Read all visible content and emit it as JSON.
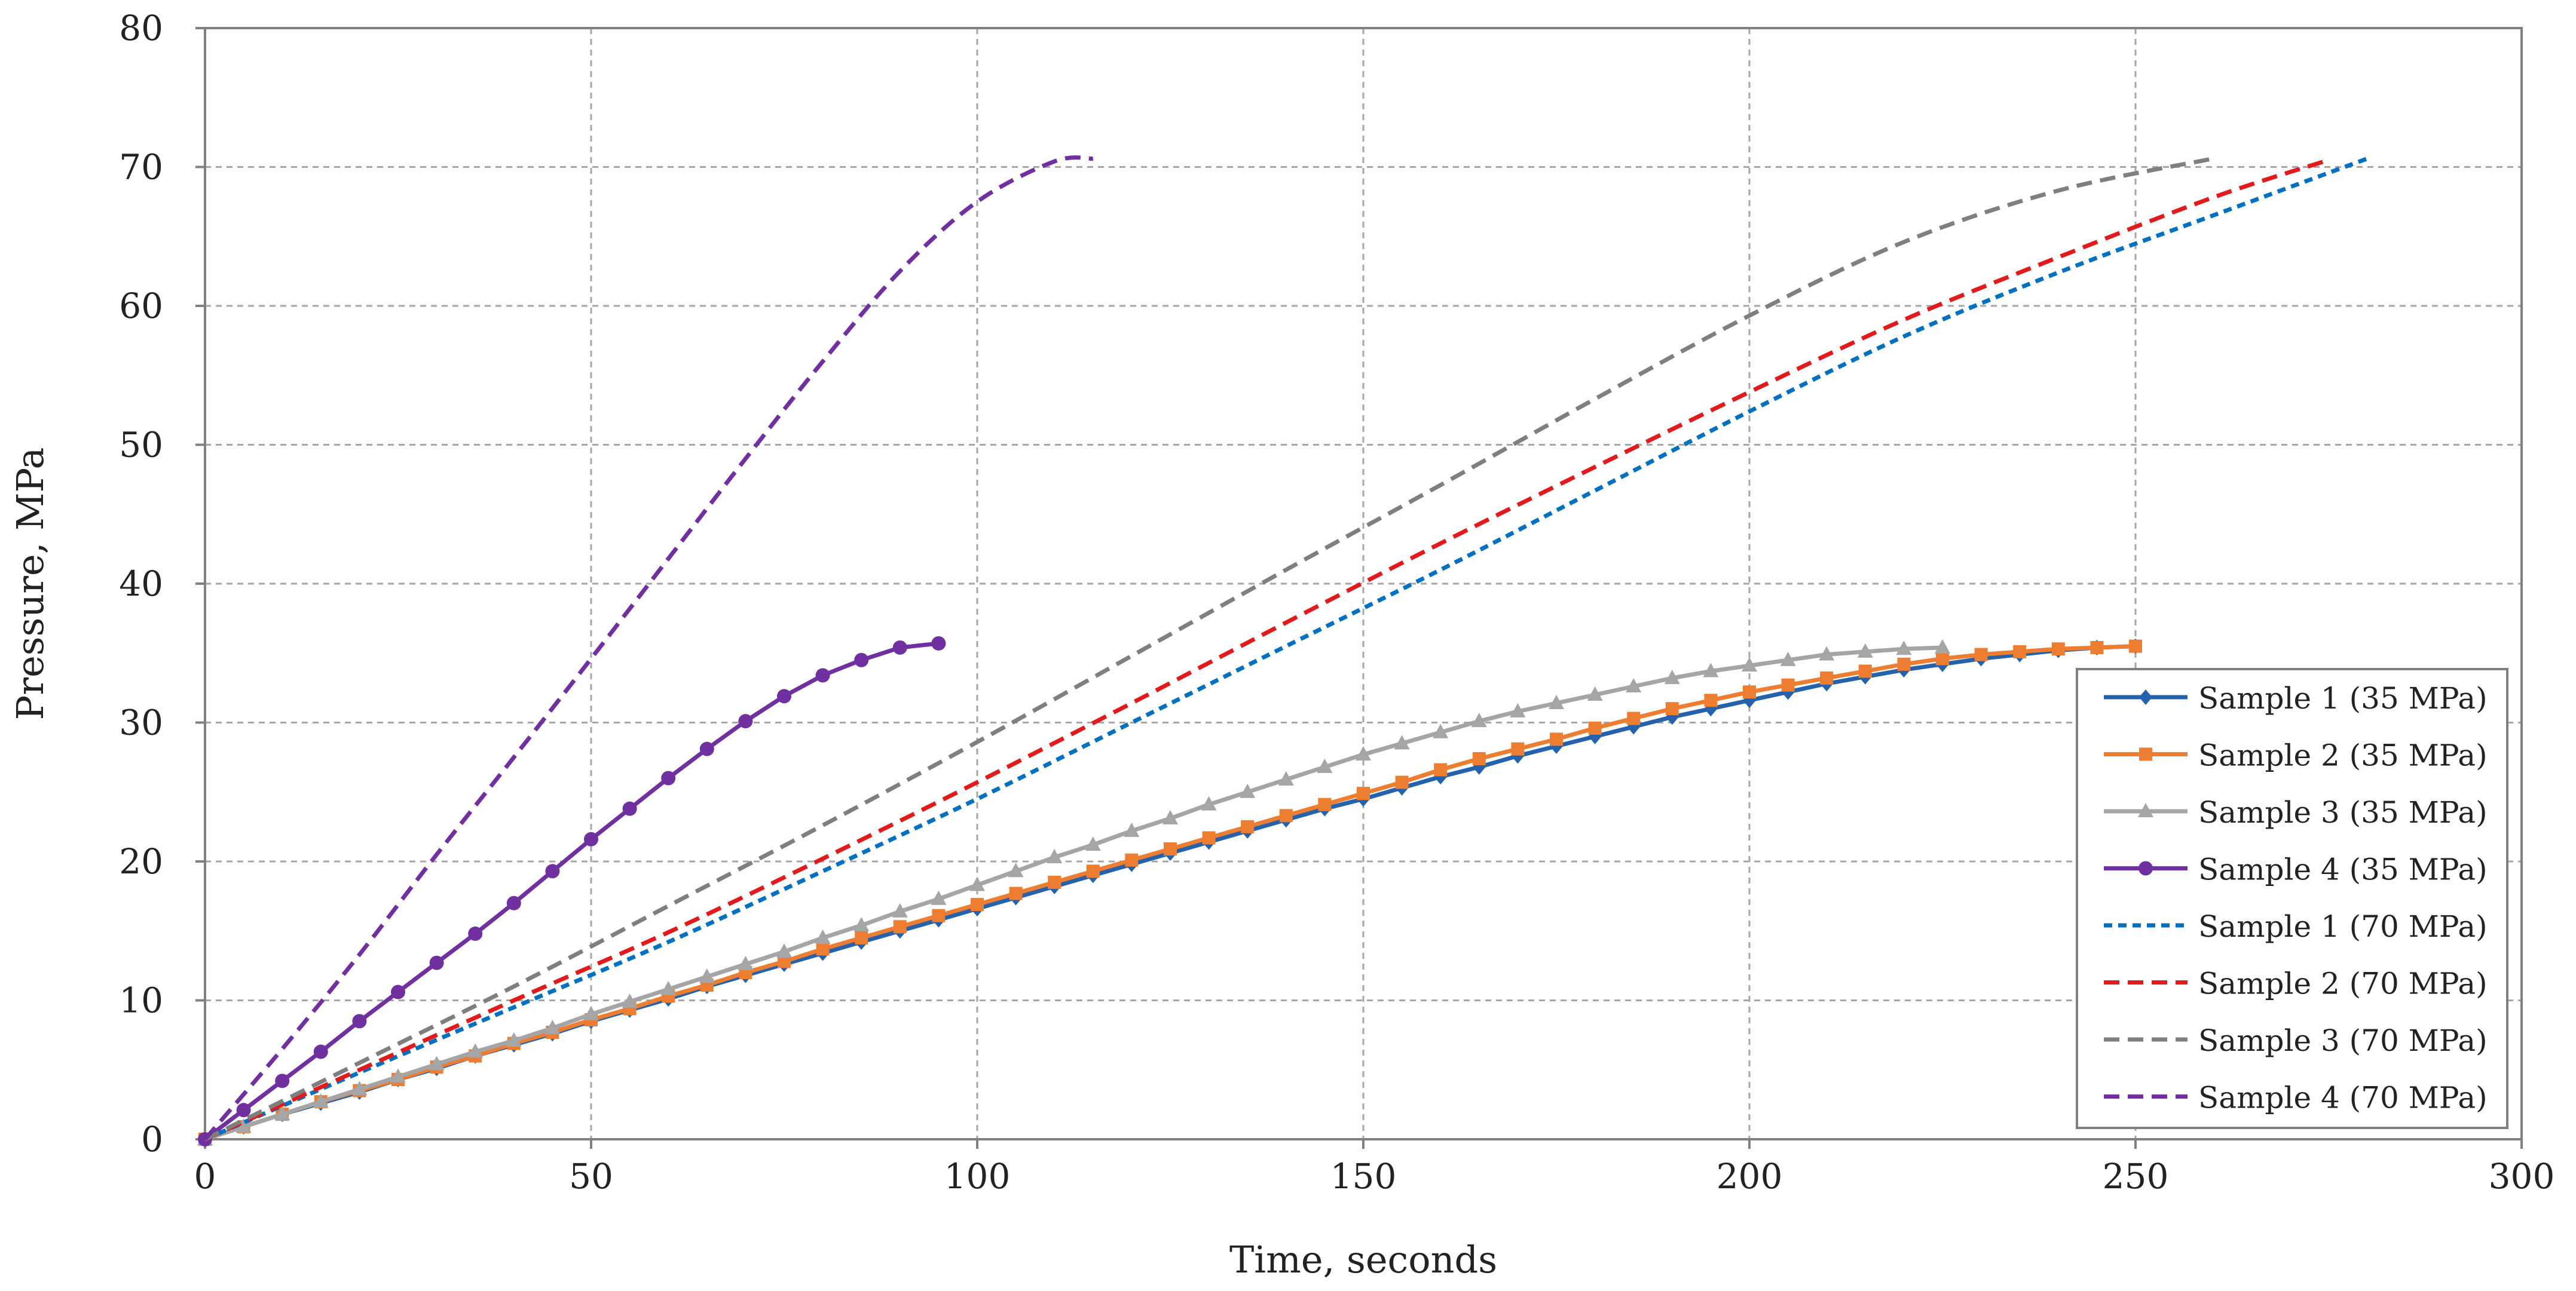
{
  "chart_data": {
    "type": "line",
    "title": "",
    "xlabel": "Time, seconds",
    "ylabel": "Pressure, MPa",
    "xlim": [
      0,
      300
    ],
    "ylim": [
      0,
      80
    ],
    "xticks": [
      0,
      50,
      100,
      150,
      200,
      250,
      300
    ],
    "yticks": [
      0,
      10,
      20,
      30,
      40,
      50,
      60,
      70,
      80
    ],
    "grid": true,
    "legend_position": "right",
    "series": [
      {
        "name": "Sample 1 (35 MPa)",
        "color": "#2462AE",
        "style": "solid",
        "marker": "diamond",
        "x": [
          0,
          5,
          10,
          15,
          20,
          25,
          30,
          35,
          40,
          45,
          50,
          55,
          60,
          65,
          70,
          75,
          80,
          85,
          90,
          95,
          100,
          105,
          110,
          115,
          120,
          125,
          130,
          135,
          140,
          145,
          150,
          155,
          160,
          165,
          170,
          175,
          180,
          185,
          190,
          195,
          200,
          205,
          210,
          215,
          220,
          225,
          230,
          235,
          240,
          245,
          250
        ],
        "y": [
          0,
          0.9,
          1.8,
          2.6,
          3.4,
          4.3,
          5.1,
          6.0,
          6.8,
          7.6,
          8.5,
          9.3,
          10.1,
          11.0,
          11.8,
          12.6,
          13.4,
          14.2,
          15.0,
          15.8,
          16.6,
          17.4,
          18.2,
          19.0,
          19.8,
          20.6,
          21.4,
          22.2,
          23.0,
          23.8,
          24.5,
          25.3,
          26.1,
          26.8,
          27.6,
          28.3,
          29.0,
          29.7,
          30.4,
          31.0,
          31.6,
          32.2,
          32.8,
          33.3,
          33.8,
          34.2,
          34.6,
          34.9,
          35.2,
          35.4,
          35.5
        ]
      },
      {
        "name": "Sample 2 (35 MPa)",
        "color": "#ED7D31",
        "style": "solid",
        "marker": "square",
        "x": [
          0,
          5,
          10,
          15,
          20,
          25,
          30,
          35,
          40,
          45,
          50,
          55,
          60,
          65,
          70,
          75,
          80,
          85,
          90,
          95,
          100,
          105,
          110,
          115,
          120,
          125,
          130,
          135,
          140,
          145,
          150,
          155,
          160,
          165,
          170,
          175,
          180,
          185,
          190,
          195,
          200,
          205,
          210,
          215,
          220,
          225,
          230,
          235,
          240,
          245,
          250
        ],
        "y": [
          0,
          0.9,
          1.8,
          2.7,
          3.5,
          4.3,
          5.2,
          6.0,
          6.9,
          7.7,
          8.6,
          9.4,
          10.3,
          11.1,
          12.0,
          12.8,
          13.7,
          14.5,
          15.3,
          16.1,
          16.9,
          17.7,
          18.5,
          19.3,
          20.1,
          20.9,
          21.7,
          22.5,
          23.3,
          24.1,
          24.9,
          25.7,
          26.6,
          27.4,
          28.1,
          28.8,
          29.6,
          30.3,
          31.0,
          31.6,
          32.2,
          32.7,
          33.2,
          33.7,
          34.2,
          34.6,
          34.9,
          35.1,
          35.3,
          35.4,
          35.5
        ]
      },
      {
        "name": "Sample 3 (35 MPa)",
        "color": "#A5A5A5",
        "style": "solid",
        "marker": "triangle",
        "x": [
          0,
          5,
          10,
          15,
          20,
          25,
          30,
          35,
          40,
          45,
          50,
          55,
          60,
          65,
          70,
          75,
          80,
          85,
          90,
          95,
          100,
          105,
          110,
          115,
          120,
          125,
          130,
          135,
          140,
          145,
          150,
          155,
          160,
          165,
          170,
          175,
          180,
          185,
          190,
          195,
          200,
          205,
          210,
          215,
          220,
          225
        ],
        "y": [
          0,
          0.9,
          1.8,
          2.7,
          3.6,
          4.5,
          5.4,
          6.3,
          7.1,
          8.0,
          9.0,
          9.9,
          10.8,
          11.7,
          12.6,
          13.5,
          14.5,
          15.4,
          16.4,
          17.3,
          18.3,
          19.3,
          20.3,
          21.2,
          22.2,
          23.1,
          24.1,
          25.0,
          25.9,
          26.8,
          27.7,
          28.5,
          29.3,
          30.1,
          30.8,
          31.4,
          32.0,
          32.6,
          33.2,
          33.7,
          34.1,
          34.5,
          34.9,
          35.1,
          35.3,
          35.4
        ]
      },
      {
        "name": "Sample 4 (35 MPa)",
        "color": "#7030A0",
        "style": "solid",
        "marker": "circle",
        "x": [
          0,
          5,
          10,
          15,
          20,
          25,
          30,
          35,
          40,
          45,
          50,
          55,
          60,
          65,
          70,
          75,
          80,
          85,
          90,
          95
        ],
        "y": [
          0,
          2.1,
          4.2,
          6.3,
          8.5,
          10.6,
          12.7,
          14.8,
          17.0,
          19.3,
          21.6,
          23.8,
          26.0,
          28.1,
          30.1,
          31.9,
          33.4,
          34.5,
          35.4,
          35.7
        ]
      },
      {
        "name": "Sample 1 (70 MPa)",
        "color": "#0070C0",
        "style": "dotted",
        "marker": "none",
        "x": [
          0,
          20,
          40,
          60,
          80,
          100,
          120,
          140,
          160,
          180,
          200,
          220,
          240,
          260,
          280
        ],
        "y": [
          0,
          4.8,
          9.5,
          14.2,
          19.3,
          24.5,
          30.0,
          35.5,
          41.0,
          46.7,
          52.4,
          57.8,
          62.4,
          66.5,
          70.6
        ]
      },
      {
        "name": "Sample 2 (70 MPa)",
        "color": "#E31A1C",
        "style": "dashed",
        "marker": "none",
        "x": [
          0,
          20,
          40,
          60,
          80,
          100,
          120,
          140,
          160,
          180,
          200,
          220,
          240,
          260,
          275
        ],
        "y": [
          0,
          5.0,
          10.0,
          14.9,
          20.2,
          25.7,
          31.4,
          37.2,
          42.9,
          48.4,
          53.8,
          59.0,
          63.5,
          67.8,
          70.5
        ]
      },
      {
        "name": "Sample 3 (70 MPa)",
        "color": "#7F7F7F",
        "style": "dashed",
        "marker": "none",
        "x": [
          0,
          20,
          40,
          60,
          80,
          100,
          120,
          140,
          160,
          180,
          200,
          220,
          240,
          260
        ],
        "y": [
          0,
          5.5,
          11.0,
          16.8,
          22.6,
          28.6,
          34.8,
          41.0,
          47.1,
          53.3,
          59.3,
          64.6,
          68.3,
          70.6
        ]
      },
      {
        "name": "Sample 4 (70 MPa)",
        "color": "#7030A0",
        "style": "dashed",
        "marker": "none",
        "x": [
          0,
          10,
          20,
          30,
          40,
          50,
          60,
          70,
          80,
          90,
          100,
          110,
          115
        ],
        "y": [
          0,
          6.5,
          13.3,
          20.5,
          27.5,
          34.6,
          41.8,
          49.0,
          56.0,
          62.5,
          67.5,
          70.4,
          70.6
        ]
      }
    ]
  }
}
